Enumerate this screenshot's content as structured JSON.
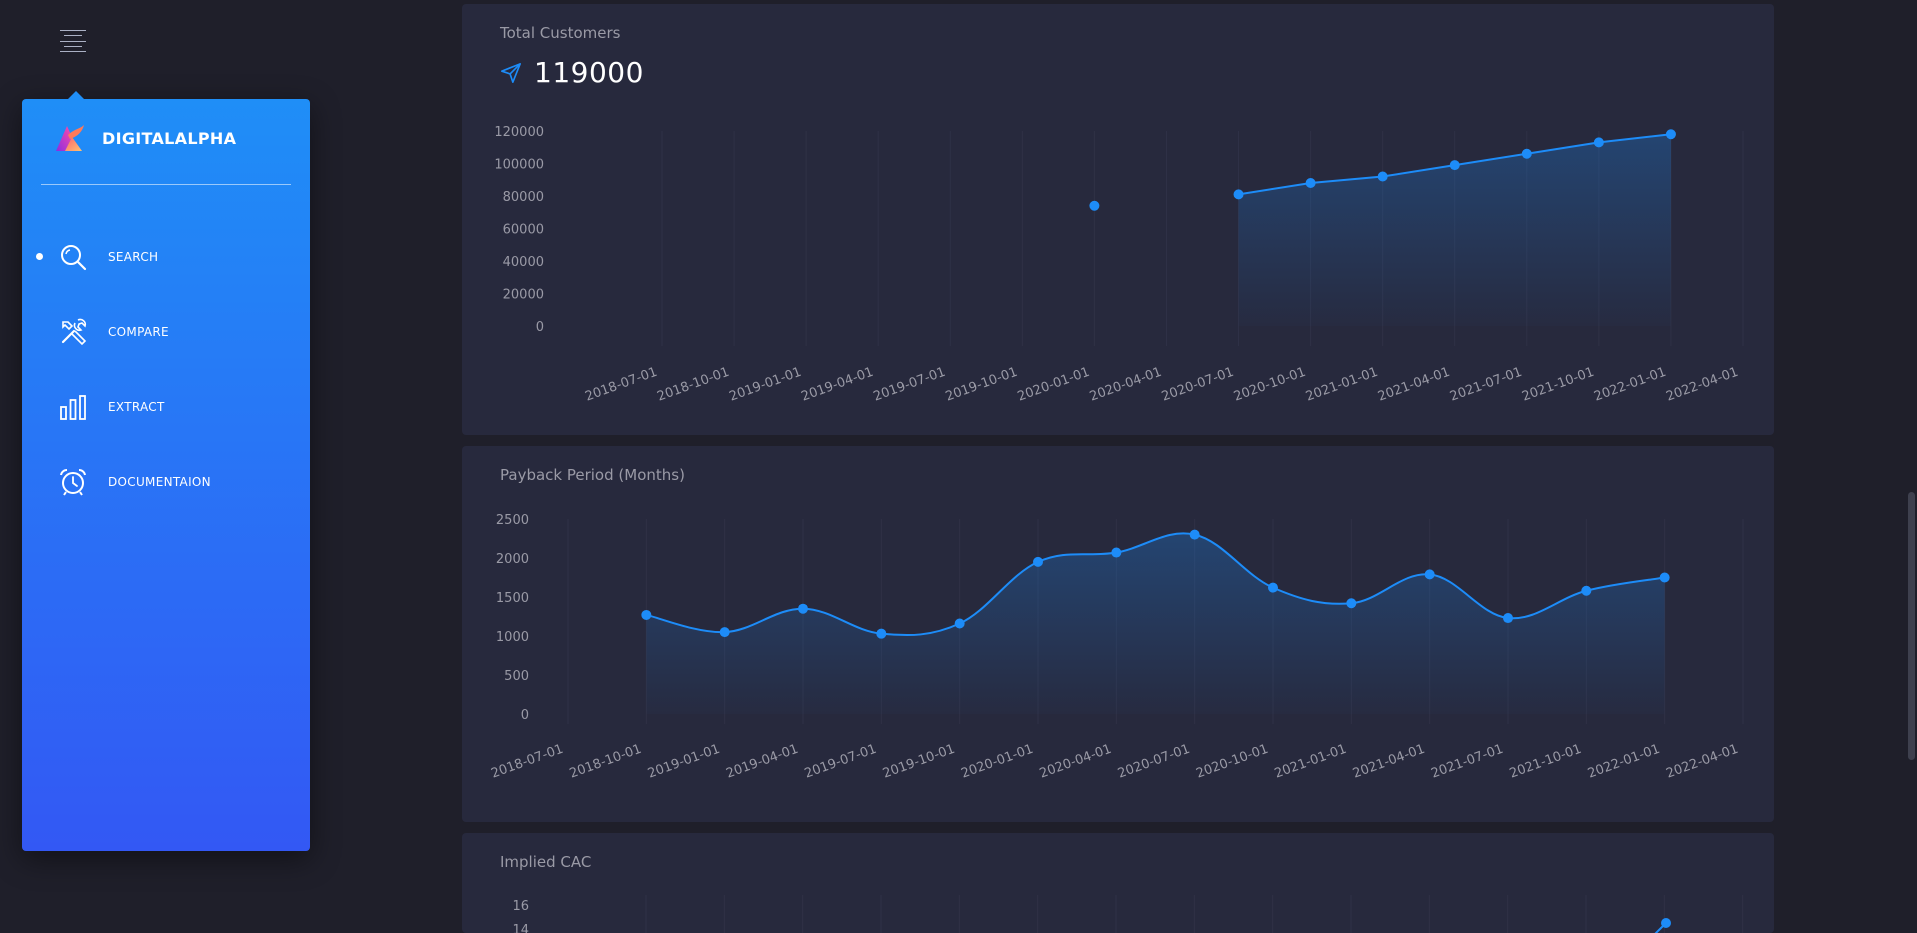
{
  "menu": {
    "icon": "hamburger-icon"
  },
  "brand": {
    "name": "DIGITALALPHA",
    "logo_icon": "digitalalpha-logo"
  },
  "nav": [
    {
      "key": "search",
      "label": "SEARCH",
      "icon": "search-icon",
      "active": true
    },
    {
      "key": "compare",
      "label": "COMPARE",
      "icon": "tools-icon",
      "active": false
    },
    {
      "key": "extract",
      "label": "EXTRACT",
      "icon": "bar-chart-icon",
      "active": false
    },
    {
      "key": "documentation",
      "label": "DOCUMENTAION",
      "icon": "alarm-clock-icon",
      "active": false
    }
  ],
  "colors": {
    "accent": "#1d8cf8",
    "card_bg": "#27293d",
    "page_bg": "#1f1f2a",
    "sidebar_top": "#1f8ef7",
    "sidebar_bottom": "#3358f4"
  },
  "cards": {
    "customers": {
      "title": "Total Customers",
      "value": "119000",
      "value_icon": "send-icon"
    },
    "payback": {
      "title": "Payback Period (Months)"
    },
    "cac": {
      "title": "Implied CAC"
    }
  },
  "chart_data": [
    {
      "type": "line",
      "title": "Total Customers",
      "x_ticks": [
        "2018-07-01",
        "2018-10-01",
        "2019-01-01",
        "2019-04-01",
        "2019-07-01",
        "2019-10-01",
        "2020-01-01",
        "2020-04-01",
        "2020-07-01",
        "2020-10-01",
        "2021-01-01",
        "2021-04-01",
        "2021-07-01",
        "2021-10-01",
        "2022-01-01",
        "2022-04-01"
      ],
      "y_ticks": [
        0,
        20000,
        40000,
        60000,
        80000,
        100000,
        120000
      ],
      "ylim": [
        0,
        120000
      ],
      "fill": true,
      "grid": true,
      "series": [
        {
          "x": [
            "2020-01-01",
            "2020-07-01",
            "2020-10-01",
            "2021-01-01",
            "2021-04-01",
            "2021-07-01",
            "2021-10-01",
            "2022-01-01"
          ],
          "values": [
            74000,
            81000,
            88000,
            92000,
            99000,
            106000,
            113000,
            118000
          ],
          "segments": [
            [
              0
            ],
            [
              1,
              2,
              3,
              4,
              5,
              6,
              7
            ]
          ]
        }
      ]
    },
    {
      "type": "line",
      "title": "Payback Period (Months)",
      "x_ticks": [
        "2018-07-01",
        "2018-10-01",
        "2019-01-01",
        "2019-04-01",
        "2019-07-01",
        "2019-10-01",
        "2020-01-01",
        "2020-04-01",
        "2020-07-01",
        "2020-10-01",
        "2021-01-01",
        "2021-04-01",
        "2021-07-01",
        "2021-10-01",
        "2022-01-01",
        "2022-04-01"
      ],
      "y_ticks": [
        0,
        500,
        1000,
        1500,
        2000,
        2500
      ],
      "ylim": [
        0,
        2500
      ],
      "fill": true,
      "grid": true,
      "series": [
        {
          "x": [
            "2018-10-01",
            "2019-01-01",
            "2019-04-01",
            "2019-07-01",
            "2019-10-01",
            "2020-01-01",
            "2020-04-01",
            "2020-07-01",
            "2020-10-01",
            "2021-01-01",
            "2021-04-01",
            "2021-07-01",
            "2021-10-01",
            "2022-01-01"
          ],
          "values": [
            1270,
            1050,
            1350,
            1030,
            1160,
            1950,
            2070,
            2300,
            1620,
            1420,
            1790,
            1230,
            1580,
            1750
          ],
          "segments": [
            [
              0,
              1,
              2,
              3,
              4,
              5,
              6,
              7,
              8,
              9,
              10,
              11,
              12,
              13
            ]
          ]
        }
      ]
    },
    {
      "type": "line",
      "title": "Implied CAC",
      "y_ticks": [
        14,
        16
      ],
      "partial": true,
      "series": [
        {
          "x": [
            "2022-01-01"
          ],
          "values": [
            15.2
          ]
        }
      ]
    }
  ]
}
